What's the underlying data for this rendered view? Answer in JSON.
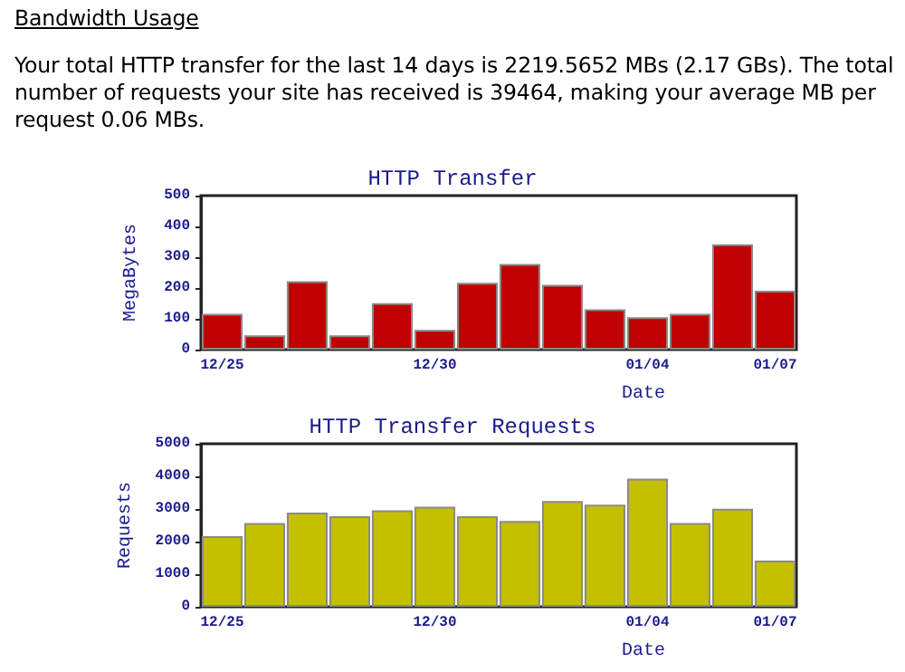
{
  "chart_data": [
    {
      "type": "bar",
      "title": "HTTP Transfer",
      "xlabel": "Date",
      "ylabel": "MegaBytes",
      "annotations": [
        "Bandwidth Usage",
        "Your total HTTP transfer for the last 14 days is 2219.5652 MBs (2.17 GBs). The total number of requests your site has received is 39464, making your average MB per request 0.06 MBs."
      ],
      "categories": [
        "12/25",
        null,
        null,
        null,
        null,
        "12/30",
        null,
        null,
        null,
        null,
        "01/04",
        null,
        null,
        "01/07"
      ],
      "values": [
        116,
        46,
        222,
        46,
        151,
        64,
        217,
        278,
        210,
        131,
        105,
        116,
        342,
        191
      ],
      "color": "#c00000",
      "ylim": [
        0,
        500
      ],
      "yticks": [
        0,
        100,
        200,
        300,
        400,
        500
      ]
    },
    {
      "type": "bar",
      "title": "HTTP Transfer Requests",
      "xlabel": "Date",
      "ylabel": "Requests",
      "categories": [
        "12/25",
        null,
        null,
        null,
        null,
        "12/30",
        null,
        null,
        null,
        null,
        "01/04",
        null,
        null,
        "01/07"
      ],
      "values": [
        2170,
        2570,
        2890,
        2780,
        2960,
        3070,
        2780,
        2630,
        3240,
        3130,
        3930,
        2570,
        3010,
        1420
      ],
      "color": "#c4c000",
      "ylim": [
        0,
        5000
      ],
      "yticks": [
        0,
        1000,
        2000,
        3000,
        4000,
        5000
      ]
    }
  ]
}
